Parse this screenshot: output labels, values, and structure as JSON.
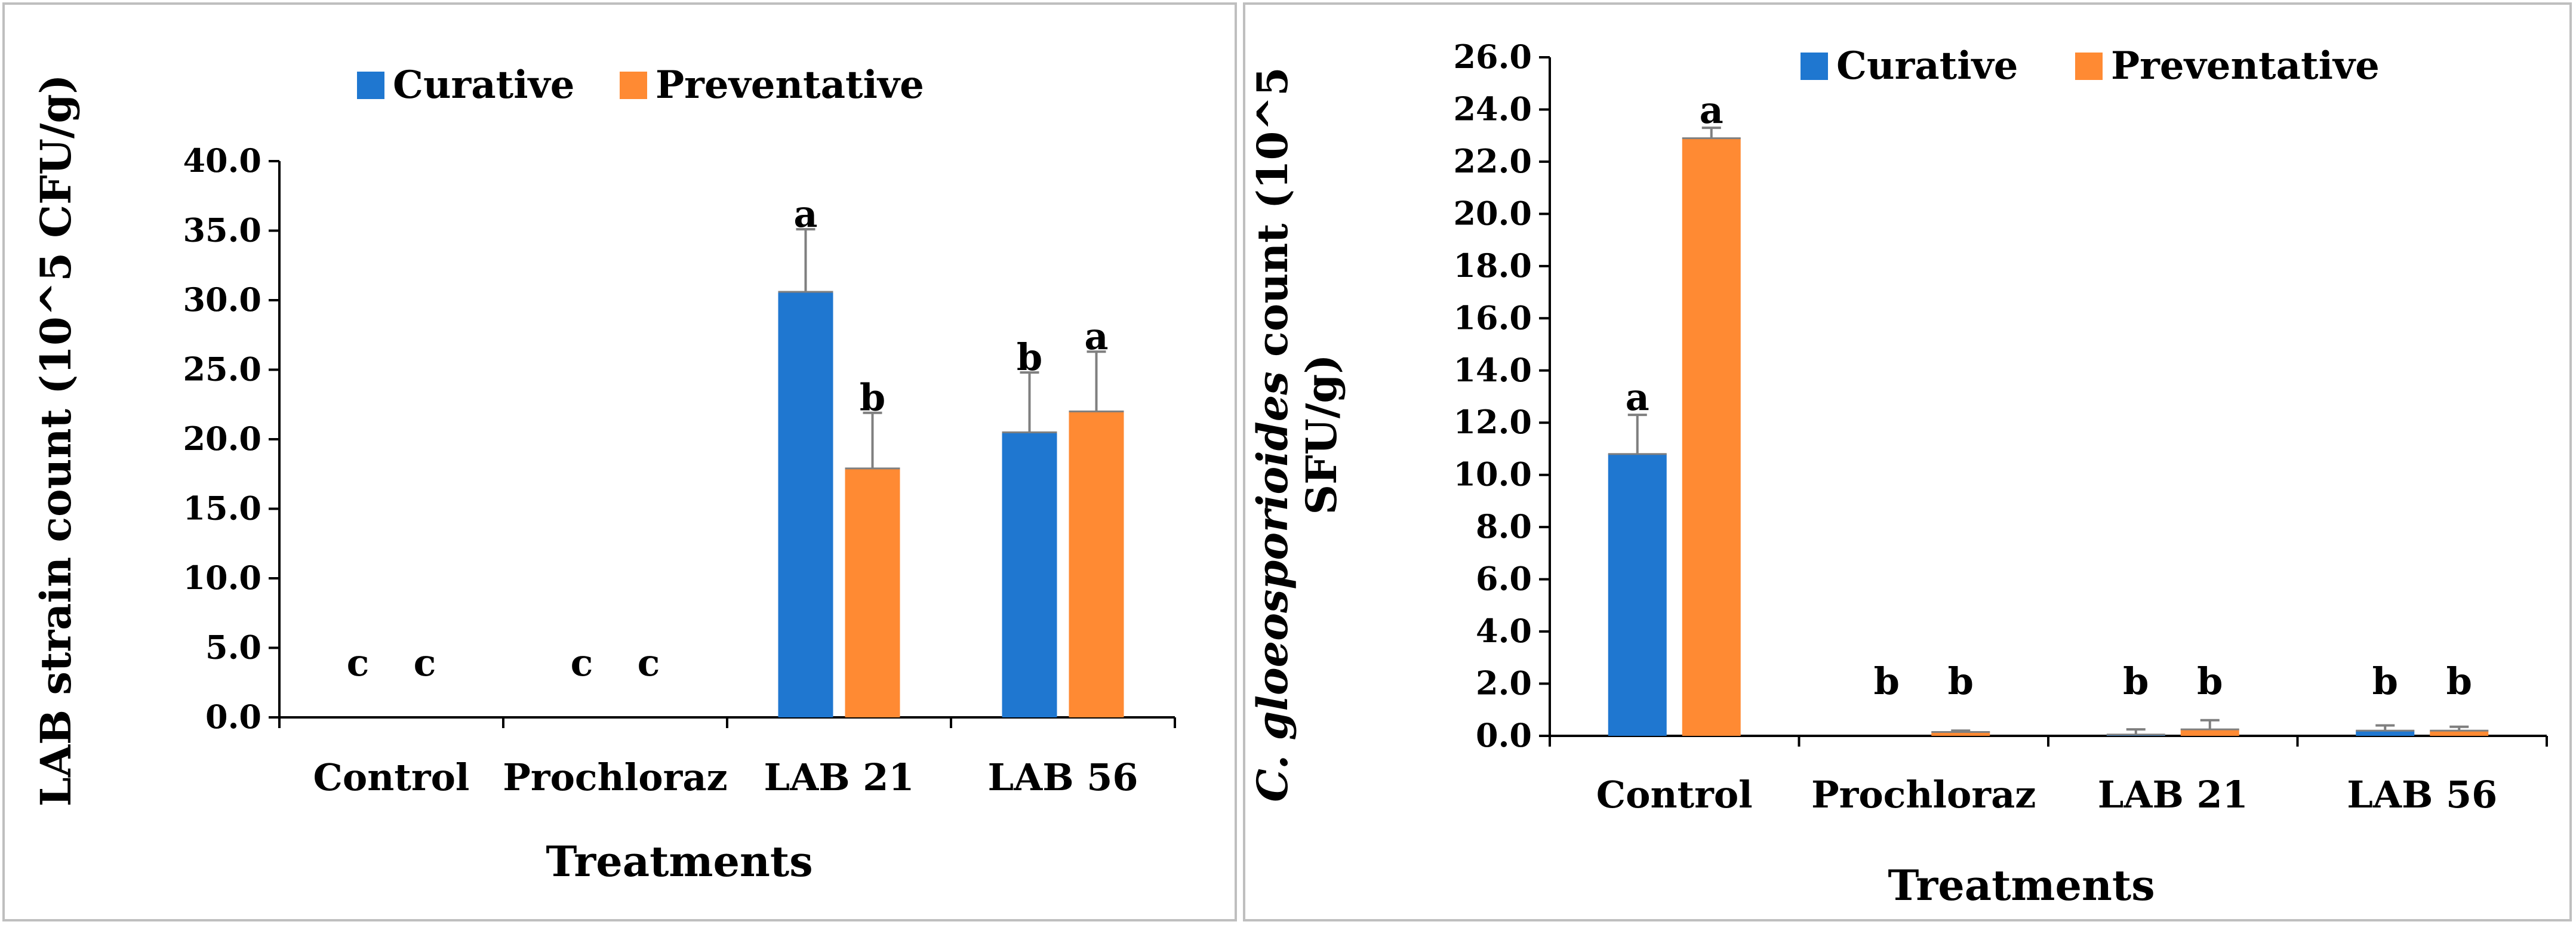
{
  "colors": {
    "curative": "#1f77d0",
    "preventative": "#ff8a33",
    "axis": "#000000",
    "error": "#7f7f7f"
  },
  "chart_data": [
    {
      "type": "bar",
      "title": "",
      "xlabel": "Treatments",
      "ylabel": "LAB strain count (10^5 CFU/g)",
      "ylim": [
        0,
        40
      ],
      "yticks": [
        "0.0",
        "5.0",
        "10.0",
        "15.0",
        "20.0",
        "25.0",
        "30.0",
        "35.0",
        "40.0"
      ],
      "categories": [
        "Control",
        "Prochloraz",
        "LAB 21",
        "LAB 56"
      ],
      "legend_position": "top",
      "series": [
        {
          "name": "Curative",
          "values": [
            0,
            0,
            30.6,
            20.5
          ],
          "errors": [
            0,
            0,
            4.5,
            4.3
          ],
          "labels": [
            "c",
            "c",
            "a",
            "b"
          ]
        },
        {
          "name": "Preventative",
          "values": [
            0,
            0,
            17.9,
            22.0
          ],
          "errors": [
            0,
            0,
            4.0,
            4.3
          ],
          "labels": [
            "c",
            "c",
            "b",
            "a"
          ]
        }
      ]
    },
    {
      "type": "bar",
      "title": "",
      "xlabel": "Treatments",
      "ylabel_prefix": "C. ",
      "ylabel_italic": "gloeosporioides",
      "ylabel_rest": " count (10^5",
      "ylabel_line2": "SFU/g)",
      "ylim": [
        0,
        26
      ],
      "yticks": [
        "0.0",
        "2.0",
        "4.0",
        "6.0",
        "8.0",
        "10.0",
        "12.0",
        "14.0",
        "16.0",
        "18.0",
        "20.0",
        "22.0",
        "24.0",
        "26.0"
      ],
      "categories": [
        "Control",
        "Prochloraz",
        "LAB 21",
        "LAB 56"
      ],
      "legend_position": "top",
      "series": [
        {
          "name": "Curative",
          "values": [
            10.8,
            0,
            0.05,
            0.2
          ],
          "errors": [
            1.5,
            0,
            0.2,
            0.2
          ],
          "labels": [
            "a",
            "b",
            "b",
            "b"
          ]
        },
        {
          "name": "Preventative",
          "values": [
            22.9,
            0.15,
            0.25,
            0.2
          ],
          "errors": [
            0.4,
            0.05,
            0.35,
            0.15
          ],
          "labels": [
            "a",
            "b",
            "b",
            "b"
          ]
        }
      ]
    }
  ]
}
